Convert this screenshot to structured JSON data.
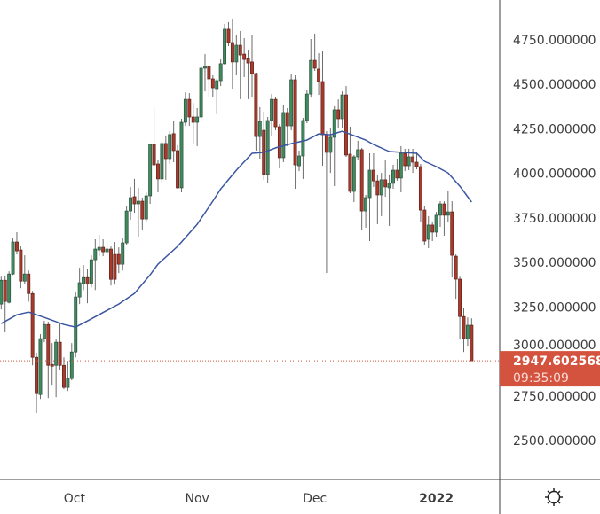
{
  "chart_data": {
    "type": "candlestick",
    "title": "",
    "ylim": [
      2300,
      4900
    ],
    "y_ticks": [
      "2500.000000",
      "2750.000000",
      "3000.000000",
      "3250.000000",
      "3500.000000",
      "3750.000000",
      "4000.000000",
      "4250.000000",
      "4500.000000",
      "4750.000000"
    ],
    "y_tick_values": [
      2500,
      2750,
      3000,
      3250,
      3500,
      3750,
      4000,
      4250,
      4500,
      4750
    ],
    "x_ticks": [
      {
        "label": "Oct",
        "index": 18.7
      },
      {
        "label": "Nov",
        "index": 50
      },
      {
        "label": "Dec",
        "index": 80
      },
      {
        "label": "2022",
        "index": 111
      }
    ],
    "candles_ohlc": [
      [
        3266,
        3420,
        3236,
        3400
      ],
      [
        3400,
        3425,
        3107,
        3281
      ],
      [
        3276,
        3450,
        3270,
        3435
      ],
      [
        3435,
        3640,
        3430,
        3615
      ],
      [
        3615,
        3670,
        3545,
        3565
      ],
      [
        3570,
        3590,
        3355,
        3395
      ],
      [
        3395,
        3540,
        3380,
        3435
      ],
      [
        3435,
        3455,
        3280,
        3325
      ],
      [
        3325,
        3340,
        2922,
        2967
      ],
      [
        2967,
        2992,
        2654,
        2763
      ],
      [
        2758,
        3097,
        2733,
        3072
      ],
      [
        3072,
        3172,
        3052,
        3151
      ],
      [
        3151,
        3167,
        2738,
        2922
      ],
      [
        2927,
        3047,
        2808,
        2917
      ],
      [
        2922,
        3072,
        2743,
        3052
      ],
      [
        3052,
        3157,
        2898,
        2922
      ],
      [
        2922,
        2967,
        2788,
        2798
      ],
      [
        2798,
        2947,
        2778,
        2848
      ],
      [
        2848,
        3047,
        2838,
        2997
      ],
      [
        2997,
        3331,
        2967,
        3306
      ],
      [
        3306,
        3470,
        3266,
        3386
      ],
      [
        3380,
        3485,
        3345,
        3415
      ],
      [
        3415,
        3465,
        3271,
        3380
      ],
      [
        3380,
        3540,
        3360,
        3515
      ],
      [
        3515,
        3630,
        3345,
        3575
      ],
      [
        3570,
        3655,
        3535,
        3585
      ],
      [
        3585,
        3630,
        3535,
        3560
      ],
      [
        3560,
        3610,
        3530,
        3575
      ],
      [
        3575,
        3590,
        3370,
        3405
      ],
      [
        3545,
        3615,
        3375,
        3405
      ],
      [
        3545,
        3585,
        3440,
        3490
      ],
      [
        3490,
        3640,
        3455,
        3610
      ],
      [
        3610,
        3819,
        3600,
        3789
      ],
      [
        3789,
        3924,
        3739,
        3864
      ],
      [
        3869,
        3969,
        3779,
        3829
      ],
      [
        3829,
        3919,
        3645,
        3844
      ],
      [
        3844,
        3864,
        3680,
        3744
      ],
      [
        3744,
        3894,
        3730,
        3874
      ],
      [
        3874,
        4168,
        3829,
        4163
      ],
      [
        4163,
        4372,
        4013,
        4048
      ],
      [
        4053,
        4073,
        3894,
        3969
      ],
      [
        3969,
        4178,
        3949,
        4168
      ],
      [
        4168,
        4213,
        3964,
        4083
      ],
      [
        4083,
        4238,
        4053,
        4218
      ],
      [
        4223,
        4297,
        4063,
        4128
      ],
      [
        4128,
        4158,
        3914,
        3919
      ],
      [
        3919,
        4307,
        3894,
        4287
      ],
      [
        4287,
        4456,
        4267,
        4416
      ],
      [
        4416,
        4451,
        4267,
        4317
      ],
      [
        4317,
        4396,
        4163,
        4287
      ],
      [
        4287,
        4367,
        4153,
        4317
      ],
      [
        4317,
        4601,
        4287,
        4591
      ],
      [
        4591,
        4670,
        4461,
        4601
      ],
      [
        4601,
        4606,
        4426,
        4531
      ],
      [
        4531,
        4551,
        4431,
        4481
      ],
      [
        4476,
        4531,
        4332,
        4521
      ],
      [
        4521,
        4640,
        4491,
        4616
      ],
      [
        4616,
        4840,
        4611,
        4810
      ],
      [
        4810,
        4850,
        4715,
        4735
      ],
      [
        4735,
        4865,
        4476,
        4626
      ],
      [
        4626,
        4780,
        4551,
        4720
      ],
      [
        4720,
        4800,
        4417,
        4665
      ],
      [
        4670,
        4760,
        4541,
        4640
      ],
      [
        4645,
        4695,
        4417,
        4620
      ],
      [
        4626,
        4775,
        4426,
        4561
      ],
      [
        4561,
        4566,
        4128,
        4207
      ],
      [
        4207,
        4372,
        4083,
        4292
      ],
      [
        4242,
        4347,
        3964,
        3994
      ],
      [
        3994,
        4317,
        3944,
        4297
      ],
      [
        4297,
        4446,
        4212,
        4416
      ],
      [
        4416,
        4431,
        4242,
        4262
      ],
      [
        4262,
        4277,
        4028,
        4088
      ],
      [
        4088,
        4387,
        4063,
        4342
      ],
      [
        4342,
        4367,
        4153,
        4267
      ],
      [
        4267,
        4561,
        4242,
        4526
      ],
      [
        4526,
        4551,
        3914,
        4048
      ],
      [
        4043,
        4128,
        4013,
        4098
      ],
      [
        4098,
        4312,
        3969,
        4297
      ],
      [
        4297,
        4466,
        4282,
        4446
      ],
      [
        4446,
        4755,
        4426,
        4635
      ],
      [
        4635,
        4785,
        4576,
        4591
      ],
      [
        4586,
        4675,
        4441,
        4516
      ],
      [
        4516,
        4690,
        4043,
        4217
      ],
      [
        4217,
        4237,
        3441,
        4118
      ],
      [
        4118,
        4252,
        4003,
        4203
      ],
      [
        4203,
        4377,
        3929,
        4357
      ],
      [
        4357,
        4416,
        4257,
        4307
      ],
      [
        4307,
        4461,
        4257,
        4441
      ],
      [
        4441,
        4491,
        4093,
        4103
      ],
      [
        4108,
        4262,
        3889,
        3899
      ],
      [
        3899,
        4103,
        3839,
        4093
      ],
      [
        4093,
        4183,
        4078,
        4133
      ],
      [
        4133,
        4143,
        3680,
        3789
      ],
      [
        3789,
        3879,
        3695,
        3864
      ],
      [
        3864,
        4113,
        3620,
        4018
      ],
      [
        4018,
        4113,
        3924,
        3958
      ],
      [
        3958,
        3994,
        3715,
        3879
      ],
      [
        3879,
        4003,
        3760,
        3964
      ],
      [
        3964,
        4073,
        3869,
        3924
      ],
      [
        3919,
        3994,
        3705,
        3944
      ],
      [
        3944,
        4048,
        3914,
        4018
      ],
      [
        4018,
        4083,
        3959,
        3974
      ],
      [
        3974,
        4153,
        3894,
        4113
      ],
      [
        4113,
        4138,
        4013,
        4043
      ],
      [
        4043,
        4138,
        4018,
        4093
      ],
      [
        4093,
        4138,
        4003,
        4063
      ],
      [
        4063,
        4123,
        4023,
        4038
      ],
      [
        4038,
        4053,
        3730,
        3794
      ],
      [
        3794,
        3819,
        3600,
        3620
      ],
      [
        3630,
        3760,
        3580,
        3710
      ],
      [
        3710,
        3730,
        3620,
        3670
      ],
      [
        3670,
        3784,
        3645,
        3765
      ],
      [
        3765,
        3844,
        3700,
        3829
      ],
      [
        3829,
        3844,
        3650,
        3765
      ],
      [
        3765,
        3904,
        3725,
        3784
      ],
      [
        3784,
        3844,
        3416,
        3540
      ],
      [
        3535,
        3545,
        3296,
        3406
      ],
      [
        3406,
        3420,
        3067,
        3196
      ],
      [
        3196,
        3246,
        2997,
        3072
      ],
      [
        3072,
        3191,
        3032,
        3147
      ],
      [
        3147,
        3186,
        2947,
        2947.602568
      ]
    ],
    "moving_average": {
      "points": [
        [
          0,
          3156
        ],
        [
          4,
          3206
        ],
        [
          7,
          3221
        ],
        [
          11,
          3191
        ],
        [
          16,
          3151
        ],
        [
          19,
          3137
        ],
        [
          22,
          3171
        ],
        [
          27,
          3231
        ],
        [
          30,
          3266
        ],
        [
          34,
          3326
        ],
        [
          38,
          3430
        ],
        [
          40,
          3490
        ],
        [
          45,
          3590
        ],
        [
          50,
          3714
        ],
        [
          54,
          3844
        ],
        [
          56,
          3913
        ],
        [
          60,
          4018
        ],
        [
          64,
          4113
        ],
        [
          67,
          4118
        ],
        [
          70,
          4143
        ],
        [
          74,
          4167
        ],
        [
          78,
          4187
        ],
        [
          81,
          4222
        ],
        [
          84,
          4217
        ],
        [
          87,
          4237
        ],
        [
          90,
          4212
        ],
        [
          93,
          4187
        ],
        [
          95,
          4162
        ],
        [
          99,
          4123
        ],
        [
          106,
          4113
        ],
        [
          108,
          4068
        ],
        [
          111,
          4038
        ],
        [
          114,
          4003
        ],
        [
          117,
          3928
        ],
        [
          120,
          3839
        ]
      ]
    },
    "last_price": 2947.602568,
    "last_price_label": "2947.602568",
    "countdown": "09:35:09",
    "colors": {
      "up": "#3f8a5f",
      "up_border": "#2c4f3c",
      "down": "#a83a2c",
      "down_border": "#5e2119",
      "ma": "#3b55a0",
      "price_label": "#d4533f",
      "axis": "#3d3d3d"
    }
  },
  "toolbar": {
    "settings_icon": "gear-icon"
  }
}
